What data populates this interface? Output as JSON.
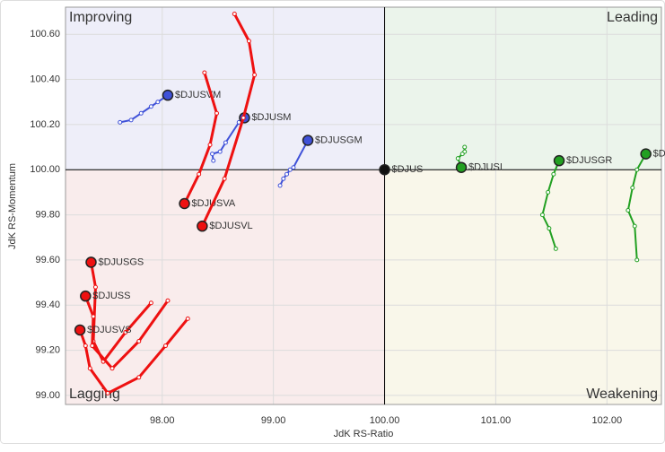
{
  "chart_data": {
    "type": "rrg",
    "x_label": "JdK RS-Ratio",
    "y_label": "JdK RS-Momentum",
    "quadrants": {
      "improving": "Improving",
      "leading": "Leading",
      "lagging": "Lagging",
      "weakening": "Weakening"
    },
    "xlim": [
      97.13,
      102.49
    ],
    "ylim": [
      98.96,
      100.72
    ],
    "xticks": [
      {
        "value": 98,
        "label": "98.00"
      },
      {
        "value": 99,
        "label": "99.00"
      },
      {
        "value": 100,
        "label": "100.00"
      },
      {
        "value": 101,
        "label": "101.00"
      },
      {
        "value": 102,
        "label": "102.00"
      }
    ],
    "yticks": [
      {
        "value": 99,
        "label": "99.00"
      },
      {
        "value": 99.2,
        "label": "99.20"
      },
      {
        "value": 99.4,
        "label": "99.40"
      },
      {
        "value": 99.6,
        "label": "99.60"
      },
      {
        "value": 99.8,
        "label": "99.80"
      },
      {
        "value": 100,
        "label": "100.00"
      },
      {
        "value": 100.2,
        "label": "100.20"
      },
      {
        "value": 100.4,
        "label": "100.40"
      },
      {
        "value": 100.6,
        "label": "100.60"
      }
    ],
    "grid": true,
    "series": [
      {
        "name": "$DJUSVM",
        "color": "#3f51d8",
        "x": [
          97.62,
          97.72,
          97.81,
          97.9,
          97.96,
          98.05
        ],
        "y": [
          100.21,
          100.22,
          100.25,
          100.28,
          100.3,
          100.33
        ]
      },
      {
        "name": "$DJUSM",
        "color": "#3f51d8",
        "x": [
          98.46,
          98.45,
          98.52,
          98.57,
          98.69,
          98.74
        ],
        "y": [
          100.04,
          100.07,
          100.08,
          100.12,
          100.21,
          100.23
        ]
      },
      {
        "name": "$DJUSGM",
        "color": "#3f51d8",
        "x": [
          99.06,
          99.09,
          99.12,
          99.15,
          99.18,
          99.31
        ],
        "y": [
          99.93,
          99.96,
          99.98,
          100.0,
          100.01,
          100.13
        ]
      },
      {
        "name": "$DJUSVA",
        "color": "#ee1111",
        "x": [
          98.38,
          98.49,
          98.43,
          98.33,
          98.2
        ],
        "y": [
          100.43,
          100.25,
          100.11,
          99.98,
          99.85
        ]
      },
      {
        "name": "$DJUSVL",
        "color": "#ee1111",
        "x": [
          98.65,
          98.78,
          98.83,
          98.73,
          98.56,
          98.36
        ],
        "y": [
          100.69,
          100.57,
          100.42,
          100.23,
          99.96,
          99.75
        ]
      },
      {
        "name": "$DJUS",
        "color": "#111111",
        "x": [
          100.0
        ],
        "y": [
          100.0
        ]
      },
      {
        "name": "$DJUSI",
        "color": "#22a022",
        "x": [
          100.72,
          100.72,
          100.7,
          100.66,
          100.69
        ],
        "y": [
          100.1,
          100.08,
          100.07,
          100.05,
          100.01
        ]
      },
      {
        "name": "$DJUSGR",
        "color": "#22a022",
        "x": [
          101.54,
          101.48,
          101.42,
          101.47,
          101.52,
          101.57
        ],
        "y": [
          99.65,
          99.74,
          99.8,
          99.9,
          99.98,
          100.04
        ]
      },
      {
        "name": "$DJUSGL",
        "color": "#22a022",
        "x": [
          102.27,
          102.25,
          102.19,
          102.23,
          102.27,
          102.35
        ],
        "y": [
          99.6,
          99.75,
          99.82,
          99.92,
          100.0,
          100.07
        ]
      },
      {
        "name": "$DJUSGS",
        "color": "#ee1111",
        "x": [
          97.9,
          97.67,
          97.47,
          97.38,
          97.4,
          97.36
        ],
        "y": [
          99.41,
          99.28,
          99.15,
          99.24,
          99.48,
          99.59
        ]
      },
      {
        "name": "$DJUSS",
        "color": "#ee1111",
        "x": [
          98.05,
          97.79,
          97.55,
          97.37,
          97.38,
          97.31
        ],
        "y": [
          99.42,
          99.24,
          99.12,
          99.22,
          99.35,
          99.44
        ]
      },
      {
        "name": "$DJUSVS",
        "color": "#ee1111",
        "x": [
          98.23,
          98.03,
          97.79,
          97.51,
          97.35,
          97.31,
          97.26
        ],
        "y": [
          99.34,
          99.22,
          99.08,
          99.01,
          99.12,
          99.22,
          99.29
        ]
      }
    ]
  }
}
